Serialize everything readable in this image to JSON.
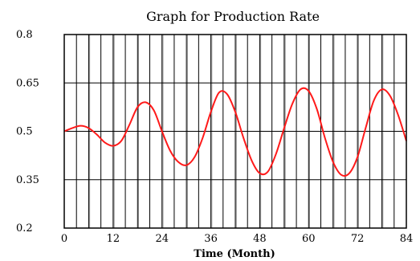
{
  "chart_data": {
    "type": "line",
    "title": "Graph for Production Rate",
    "xlabel": "Time (Month)",
    "ylabel": "",
    "xlim": [
      0,
      84
    ],
    "ylim": [
      0.2,
      0.8
    ],
    "x_ticks": [
      0,
      12,
      24,
      36,
      48,
      60,
      72,
      84
    ],
    "y_ticks": [
      0.2,
      0.35,
      0.5,
      0.65,
      0.8
    ],
    "y_tick_labels": [
      "0.2",
      "0.35",
      "0.5",
      "0.65",
      "0.8"
    ],
    "grid": true,
    "colors": {
      "series": "#ff1a1a",
      "grid": "#000000"
    },
    "series": [
      {
        "x": [
          0,
          2,
          4,
          6,
          8,
          10,
          12,
          14,
          16,
          18,
          20,
          22,
          24,
          26,
          28,
          30,
          32,
          34,
          36,
          38,
          40,
          42,
          44,
          46,
          48,
          50,
          52,
          54,
          56,
          58,
          60,
          62,
          64,
          66,
          68,
          70,
          72,
          74,
          76,
          78,
          80,
          82,
          84
        ],
        "y": [
          0.5,
          0.51,
          0.517,
          0.51,
          0.49,
          0.465,
          0.455,
          0.47,
          0.52,
          0.575,
          0.59,
          0.565,
          0.5,
          0.44,
          0.405,
          0.395,
          0.42,
          0.48,
          0.56,
          0.62,
          0.615,
          0.56,
          0.48,
          0.41,
          0.37,
          0.375,
          0.43,
          0.51,
          0.585,
          0.63,
          0.625,
          0.57,
          0.48,
          0.405,
          0.365,
          0.37,
          0.42,
          0.51,
          0.595,
          0.63,
          0.61,
          0.55,
          0.47
        ]
      }
    ]
  }
}
